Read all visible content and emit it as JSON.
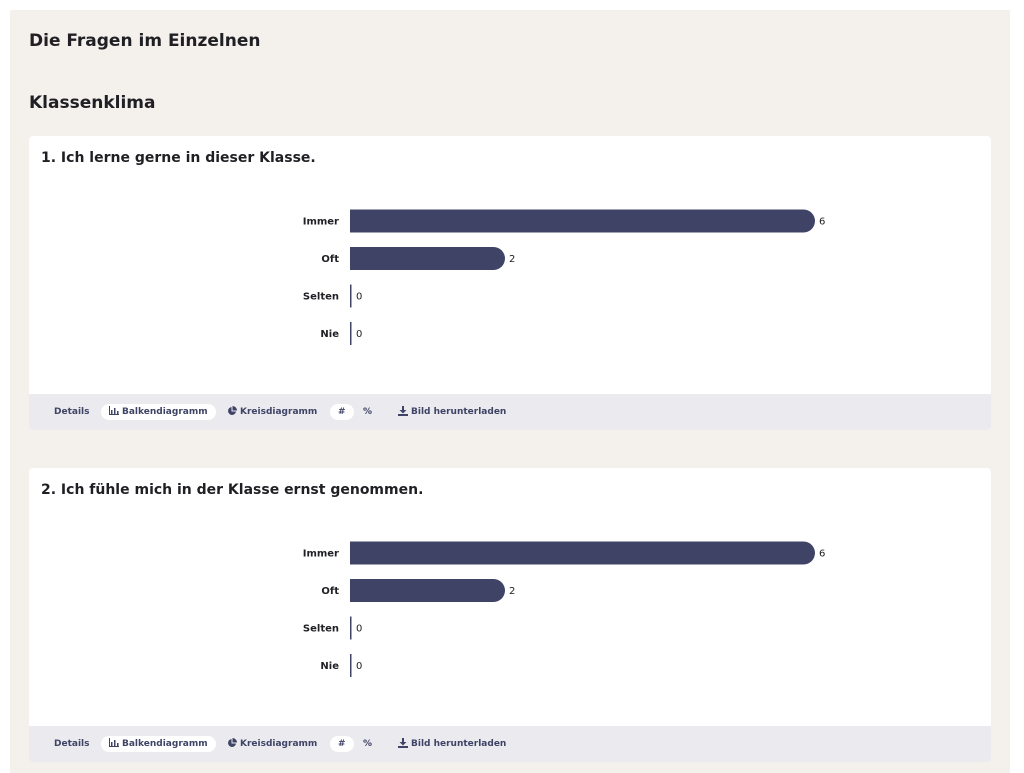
{
  "page_title": "Die Fragen im Einzelnen",
  "section_title": "Klassenklima",
  "toolbar": {
    "details": "Details",
    "bar_chart": "Balkendiagramm",
    "pie_chart": "Kreisdiagramm",
    "count": "#",
    "percent": "%",
    "download": "Bild herunterladen",
    "bar_icon": "bar-chart-icon",
    "pie_icon": "pie-chart-icon",
    "download_icon": "download-icon"
  },
  "colors": {
    "bar": "#3f4466",
    "panel": "#f4f0ec",
    "toolbar": "#ebeaef"
  },
  "chart_data": [
    {
      "type": "bar",
      "orientation": "horizontal",
      "title": "1. Ich lerne gerne in dieser Klasse.",
      "categories": [
        "Immer",
        "Oft",
        "Selten",
        "Nie"
      ],
      "values": [
        6,
        2,
        0,
        0
      ],
      "xlim": [
        0,
        6
      ],
      "grid": false
    },
    {
      "type": "bar",
      "orientation": "horizontal",
      "title": "2. Ich fühle mich in der Klasse ernst genommen.",
      "categories": [
        "Immer",
        "Oft",
        "Selten",
        "Nie"
      ],
      "values": [
        6,
        2,
        0,
        0
      ],
      "xlim": [
        0,
        6
      ],
      "grid": false
    }
  ]
}
